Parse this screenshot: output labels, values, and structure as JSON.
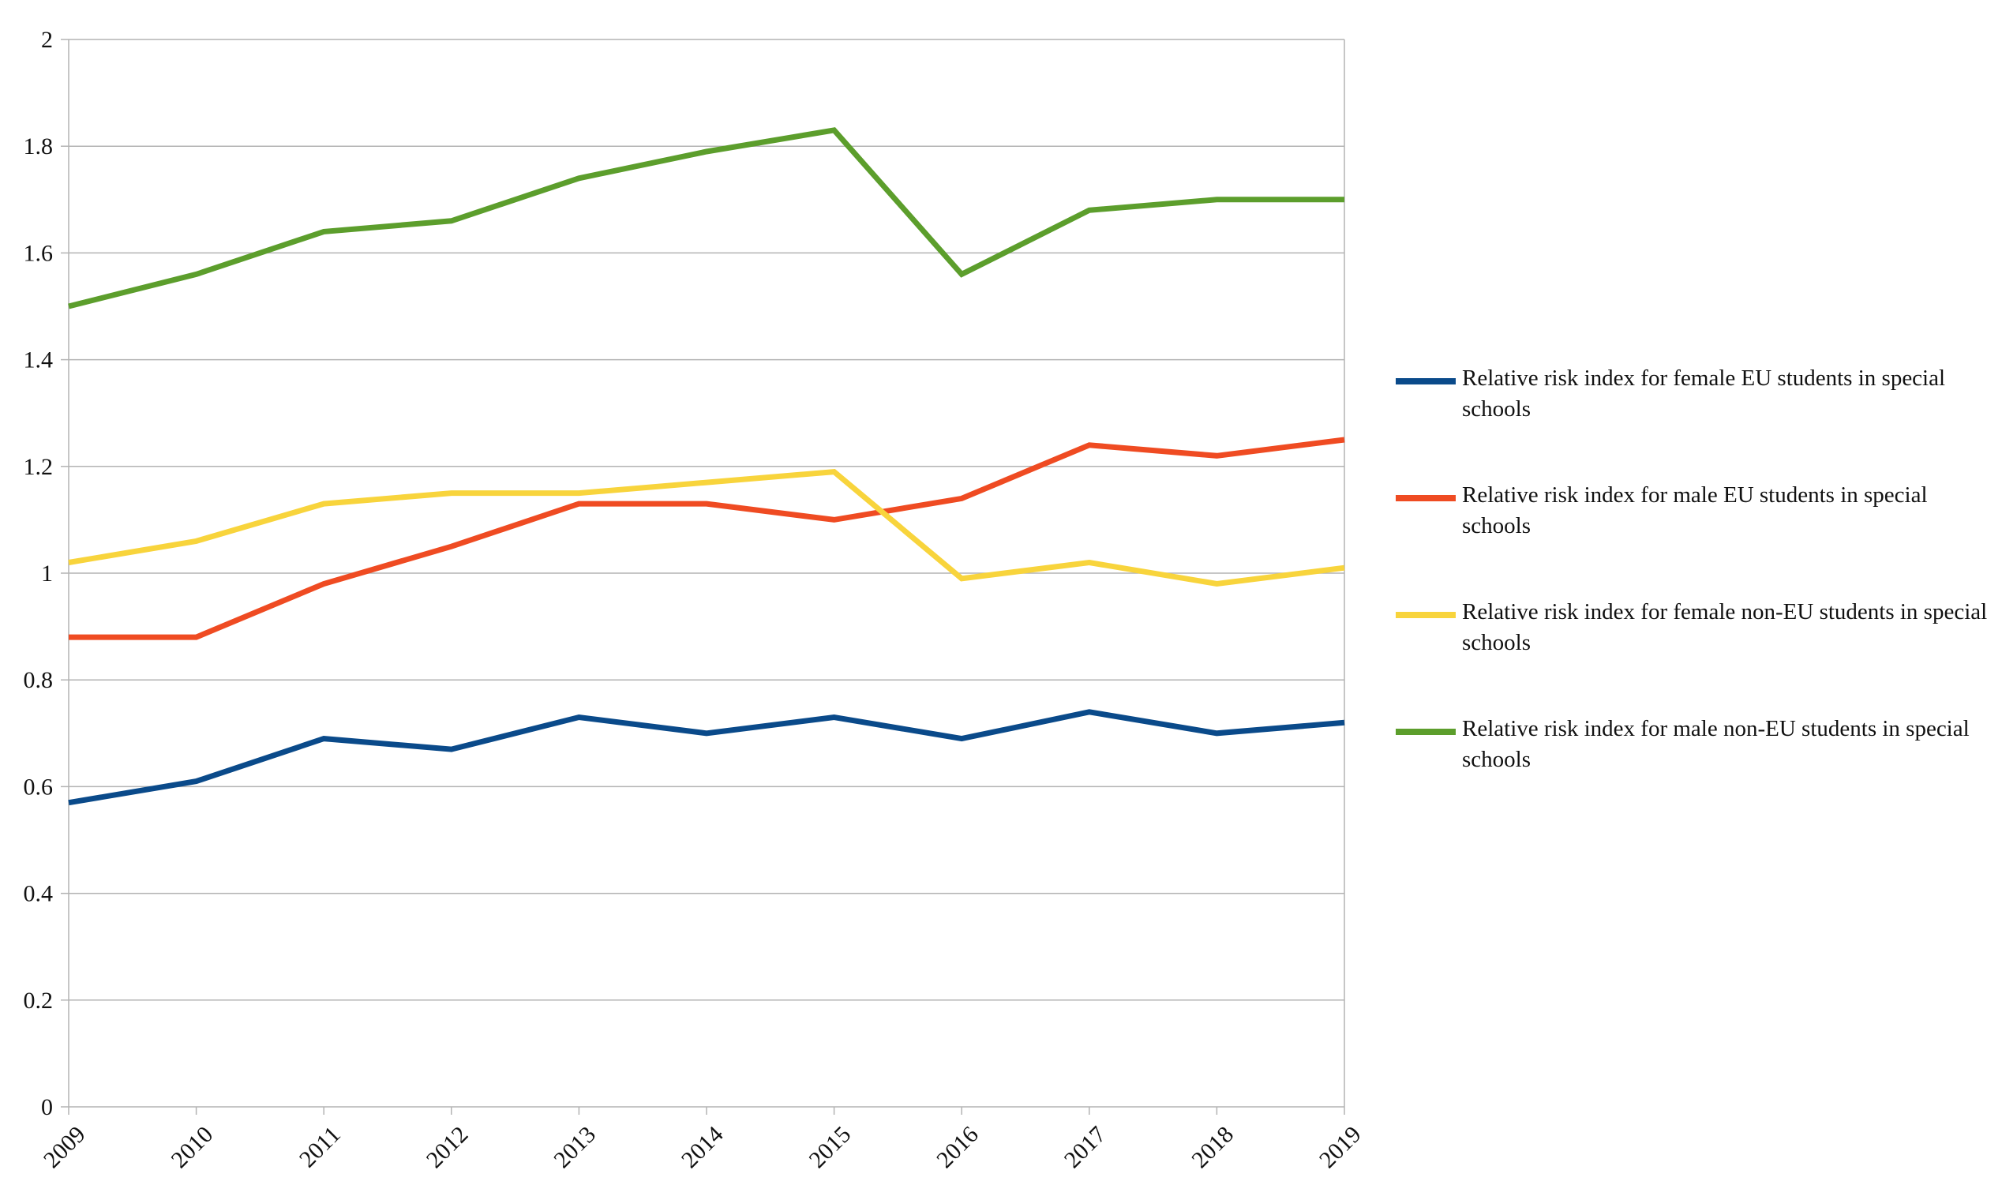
{
  "chart_data": {
    "type": "line",
    "title": "",
    "xlabel": "",
    "ylabel": "",
    "x": [
      "2009",
      "2010",
      "2011",
      "2012",
      "2013",
      "2014",
      "2015",
      "2016",
      "2017",
      "2018",
      "2019"
    ],
    "ylim": [
      0,
      2
    ],
    "yticks": [
      0,
      0.2,
      0.4,
      0.6,
      0.8,
      1,
      1.2,
      1.4,
      1.6,
      1.8,
      2
    ],
    "ytick_labels": [
      "0",
      "0.2",
      "0.4",
      "0.6",
      "0.8",
      "1",
      "1.2",
      "1.4",
      "1.6",
      "1.8",
      "2"
    ],
    "grid": "horizontal",
    "legend_position": "right",
    "series": [
      {
        "name": "Relative risk index for female EU students in special schools",
        "color": "#0a4a8a",
        "values": [
          0.57,
          0.61,
          0.69,
          0.67,
          0.73,
          0.7,
          0.73,
          0.69,
          0.74,
          0.7,
          0.72
        ]
      },
      {
        "name": "Relative risk index for male EU students in special schools",
        "color": "#ef4b22",
        "values": [
          0.88,
          0.88,
          0.98,
          1.05,
          1.13,
          1.13,
          1.1,
          1.14,
          1.24,
          1.22,
          1.25
        ]
      },
      {
        "name": "Relative risk index for female non-EU students in special schools",
        "color": "#f8d43c",
        "values": [
          1.02,
          1.06,
          1.13,
          1.15,
          1.15,
          1.17,
          1.19,
          0.99,
          1.02,
          0.98,
          1.01
        ]
      },
      {
        "name": "Relative risk index for male non-EU students in special schools",
        "color": "#5c9e2c",
        "values": [
          1.5,
          1.56,
          1.64,
          1.66,
          1.74,
          1.79,
          1.83,
          1.56,
          1.68,
          1.7,
          1.7
        ]
      }
    ]
  }
}
